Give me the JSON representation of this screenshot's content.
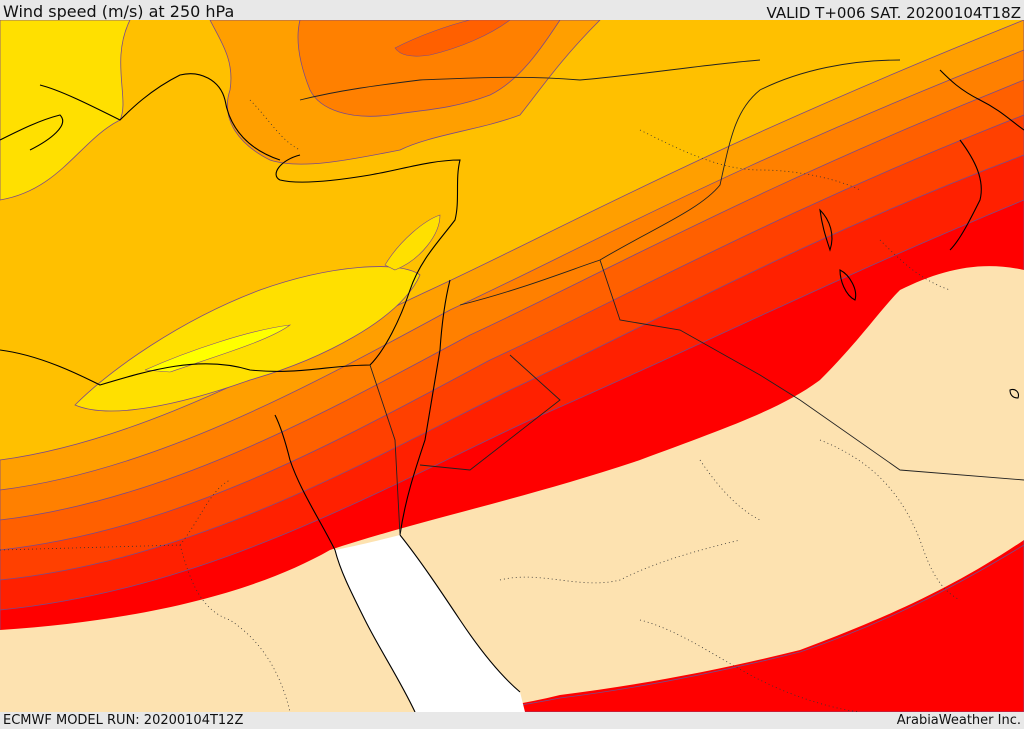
{
  "header": {
    "title": "Wind speed (m/s) at 250 hPa",
    "valid": "VALID T+006 SAT. 20200104T18Z"
  },
  "footer": {
    "model_run": "ECMWF MODEL RUN: 20200104T12Z",
    "credit": "ArabiaWeather Inc."
  },
  "colors": {
    "band_0": "#fde2b0",
    "band_1": "#ffff00",
    "band_2": "#ffe000",
    "band_3": "#ffc000",
    "band_4": "#ff9f00",
    "band_5": "#ff8000",
    "band_6": "#ff6000",
    "band_7": "#ff4000",
    "band_8": "#ff2000",
    "band_9": "#ff0000",
    "sea_mask": "#ffffff",
    "coastline": "#000000",
    "borders": "#333333",
    "contour": "#7a4a8a"
  }
}
